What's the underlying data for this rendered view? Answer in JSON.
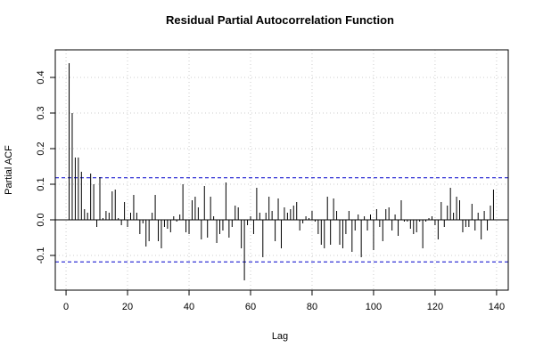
{
  "chart_data": {
    "type": "stem",
    "title": "Residual Partial Autocorrelation Function",
    "xlabel": "Lag",
    "ylabel": "Partial ACF",
    "x": [
      1,
      2,
      3,
      4,
      5,
      6,
      7,
      8,
      9,
      10,
      11,
      12,
      13,
      14,
      15,
      16,
      17,
      18,
      19,
      20,
      21,
      22,
      23,
      24,
      25,
      26,
      27,
      28,
      29,
      30,
      31,
      32,
      33,
      34,
      35,
      36,
      37,
      38,
      39,
      40,
      41,
      42,
      43,
      44,
      45,
      46,
      47,
      48,
      49,
      50,
      51,
      52,
      53,
      54,
      55,
      56,
      57,
      58,
      59,
      60,
      61,
      62,
      63,
      64,
      65,
      66,
      67,
      68,
      69,
      70,
      71,
      72,
      73,
      74,
      75,
      76,
      77,
      78,
      79,
      80,
      81,
      82,
      83,
      84,
      85,
      86,
      87,
      88,
      89,
      90,
      91,
      92,
      93,
      94,
      95,
      96,
      97,
      98,
      99,
      100,
      101,
      102,
      103,
      104,
      105,
      106,
      107,
      108,
      109,
      110,
      111,
      112,
      113,
      114,
      115,
      116,
      117,
      118,
      119,
      120,
      121,
      122,
      123,
      124,
      125,
      126,
      127,
      128,
      129,
      130,
      131,
      132,
      133,
      134,
      135,
      136,
      137,
      138,
      139
    ],
    "values": [
      0.44,
      0.3,
      0.175,
      0.175,
      0.135,
      0.03,
      0.02,
      0.13,
      0.1,
      -0.02,
      0.12,
      0.005,
      0.025,
      0.02,
      0.08,
      0.085,
      0.005,
      -0.015,
      0.05,
      -0.02,
      0.02,
      0.07,
      0.02,
      -0.04,
      -0.01,
      -0.075,
      -0.06,
      0.02,
      0.07,
      -0.06,
      -0.08,
      -0.02,
      -0.025,
      -0.035,
      0.01,
      -0.005,
      0.015,
      0.1,
      -0.035,
      -0.04,
      0.055,
      0.065,
      0.035,
      -0.055,
      0.095,
      -0.05,
      0.065,
      0.01,
      -0.065,
      -0.04,
      -0.03,
      0.105,
      -0.05,
      -0.02,
      0.04,
      0.035,
      -0.08,
      -0.17,
      -0.015,
      0.01,
      -0.04,
      0.09,
      0.02,
      -0.105,
      0.02,
      0.065,
      0.025,
      -0.06,
      0.06,
      -0.08,
      0.035,
      0.02,
      0.03,
      0.04,
      0.05,
      -0.03,
      -0.01,
      0.01,
      0.005,
      0.025,
      -0.005,
      -0.04,
      -0.07,
      -0.08,
      0.065,
      -0.07,
      0.06,
      0.025,
      -0.07,
      -0.08,
      -0.04,
      0.025,
      -0.09,
      -0.03,
      0.015,
      -0.105,
      0.01,
      -0.03,
      0.015,
      -0.085,
      0.03,
      -0.02,
      -0.06,
      0.03,
      0.035,
      -0.03,
      0.015,
      -0.045,
      0.055,
      -0.005,
      -0.005,
      -0.025,
      -0.04,
      -0.035,
      -0.005,
      -0.08,
      -0.005,
      0.005,
      0.01,
      -0.015,
      -0.055,
      0.05,
      -0.02,
      0.04,
      0.09,
      0.02,
      0.065,
      0.055,
      -0.035,
      -0.02,
      -0.02,
      0.045,
      -0.03,
      0.02,
      -0.055,
      0.025,
      -0.03,
      0.04,
      0.085
    ],
    "color": "#000000",
    "conf_limits": [
      0.118,
      -0.118
    ],
    "conf_color": "#0000cc",
    "xlim": [
      -3.5,
      143.8
    ],
    "xticks": [
      0,
      20,
      40,
      60,
      80,
      100,
      120,
      140
    ],
    "ylim": [
      -0.1975,
      0.4775
    ],
    "yticks": [
      -0.1,
      {
        "value": 0,
        "label": "0.0"
      },
      0.1,
      0.2,
      0.3,
      0.4
    ],
    "grid": true
  }
}
